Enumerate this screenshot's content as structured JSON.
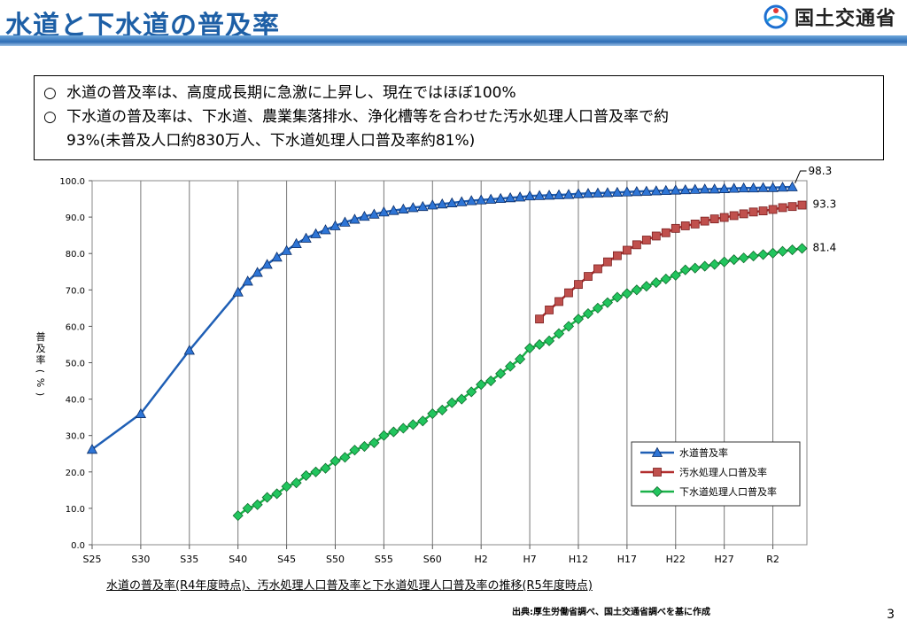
{
  "header": {
    "title": "水道と下水道の普及率",
    "logo_text": "国土交通省"
  },
  "summary": {
    "marker": "○",
    "line1": "水道の普及率は、高度成長期に急激に上昇し、現在ではほぼ100%",
    "line2": "下水道の普及率は、下水道、農業集落排水、浄化槽等を合わせた汚水処理人口普及率で約",
    "line3": "93%(未普及人口約830万人、下水道処理人口普及率約81%)"
  },
  "caption": "水道の普及率(R4年度時点)、汚水処理人口普及率と下水道処理人口普及率の推移(R5年度時点)",
  "source": "出典:厚生労働省調べ、国土交通省調べを基に作成",
  "page_number": "3",
  "colors": {
    "title": "#1d5fa6",
    "water": "#1f5fb5",
    "sewage": "#b22e2e",
    "sewer": "#1bb24a",
    "water_marker": "#2e75d6",
    "sewage_marker": "#c0504d",
    "sewer_marker": "#22c55e"
  },
  "chart_data": {
    "type": "line",
    "ylabel": "普及率(%)",
    "ylim": [
      0,
      100
    ],
    "yticks": [
      "0.0",
      "10.0",
      "20.0",
      "30.0",
      "40.0",
      "50.0",
      "60.0",
      "70.0",
      "80.0",
      "90.0",
      "100.0"
    ],
    "xticks": [
      "S25",
      "S30",
      "S35",
      "S40",
      "S45",
      "S50",
      "S55",
      "S60",
      "H2",
      "H7",
      "H12",
      "H17",
      "H22",
      "H27",
      "R2"
    ],
    "xtick_years": [
      1950,
      1955,
      1960,
      1965,
      1970,
      1975,
      1980,
      1985,
      1990,
      1995,
      2000,
      2005,
      2010,
      2015,
      2020
    ],
    "x_range": [
      1950,
      2023.5
    ],
    "grid": "vertical",
    "legend_position": "bottom-right",
    "series": [
      {
        "name": "水道普及率",
        "marker": "triangle",
        "end_label": "98.3",
        "x": [
          1950,
          1955,
          1960,
          1965,
          1966,
          1967,
          1968,
          1969,
          1970,
          1971,
          1972,
          1973,
          1974,
          1975,
          1976,
          1977,
          1978,
          1979,
          1980,
          1981,
          1982,
          1983,
          1984,
          1985,
          1986,
          1987,
          1988,
          1989,
          1990,
          1991,
          1992,
          1993,
          1994,
          1995,
          1996,
          1997,
          1998,
          1999,
          2000,
          2001,
          2002,
          2003,
          2004,
          2005,
          2006,
          2007,
          2008,
          2009,
          2010,
          2011,
          2012,
          2013,
          2014,
          2015,
          2016,
          2017,
          2018,
          2019,
          2020,
          2021,
          2022
        ],
        "values": [
          26.2,
          36.0,
          53.4,
          69.4,
          72.4,
          74.8,
          77.0,
          79.0,
          80.8,
          82.7,
          84.2,
          85.4,
          86.5,
          87.6,
          88.6,
          89.4,
          90.2,
          90.8,
          91.4,
          91.8,
          92.2,
          92.6,
          92.9,
          93.3,
          93.6,
          93.9,
          94.2,
          94.5,
          94.7,
          94.9,
          95.1,
          95.3,
          95.5,
          95.8,
          95.9,
          96.0,
          96.1,
          96.2,
          96.4,
          96.5,
          96.6,
          96.7,
          96.8,
          96.9,
          97.0,
          97.1,
          97.2,
          97.3,
          97.4,
          97.5,
          97.6,
          97.7,
          97.7,
          97.8,
          97.9,
          98.0,
          98.0,
          98.1,
          98.1,
          98.2,
          98.3
        ]
      },
      {
        "name": "汚水処理人口普及率",
        "marker": "square",
        "end_label": "93.3",
        "x": [
          1996,
          1997,
          1998,
          1999,
          2000,
          2001,
          2002,
          2003,
          2004,
          2005,
          2006,
          2007,
          2008,
          2009,
          2010,
          2011,
          2012,
          2013,
          2014,
          2015,
          2016,
          2017,
          2018,
          2019,
          2020,
          2021,
          2022,
          2023
        ],
        "values": [
          62.0,
          64.5,
          66.8,
          69.2,
          71.5,
          73.7,
          75.8,
          77.7,
          79.4,
          80.9,
          82.4,
          83.7,
          84.8,
          85.7,
          86.9,
          87.6,
          88.1,
          88.9,
          89.5,
          89.9,
          90.4,
          90.9,
          91.4,
          91.7,
          92.1,
          92.6,
          92.9,
          93.3
        ]
      },
      {
        "name": "下水道処理人口普及率",
        "marker": "diamond",
        "end_label": "81.4",
        "x": [
          1965,
          1966,
          1967,
          1968,
          1969,
          1970,
          1971,
          1972,
          1973,
          1974,
          1975,
          1976,
          1977,
          1978,
          1979,
          1980,
          1981,
          1982,
          1983,
          1984,
          1985,
          1986,
          1987,
          1988,
          1989,
          1990,
          1991,
          1992,
          1993,
          1994,
          1995,
          1996,
          1997,
          1998,
          1999,
          2000,
          2001,
          2002,
          2003,
          2004,
          2005,
          2006,
          2007,
          2008,
          2009,
          2010,
          2011,
          2012,
          2013,
          2014,
          2015,
          2016,
          2017,
          2018,
          2019,
          2020,
          2021,
          2022,
          2023
        ],
        "values": [
          8.0,
          10.0,
          11.0,
          13.0,
          14.0,
          16.0,
          17.0,
          19.0,
          20.0,
          21.0,
          23.0,
          24.0,
          26.0,
          27.0,
          28.0,
          30.0,
          31.0,
          32.0,
          33.0,
          34.0,
          36.0,
          37.0,
          39.0,
          40.0,
          42.0,
          44.0,
          45.0,
          47.0,
          49.0,
          51.0,
          54.0,
          55.0,
          56.0,
          58.0,
          60.0,
          62.0,
          63.5,
          65.0,
          66.5,
          68.0,
          69.0,
          70.0,
          71.0,
          72.0,
          73.0,
          74.0,
          75.5,
          76.0,
          76.5,
          77.0,
          77.7,
          78.3,
          78.8,
          79.3,
          79.7,
          80.1,
          80.6,
          81.0,
          81.4
        ]
      }
    ]
  }
}
